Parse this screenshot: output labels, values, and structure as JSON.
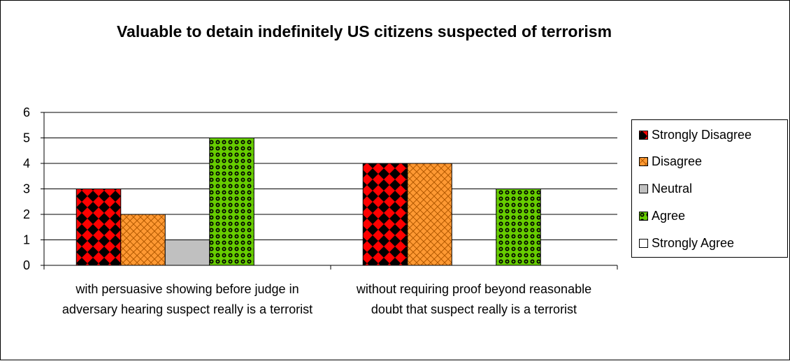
{
  "chart_data": {
    "type": "bar",
    "title": "Valuable to detain indefinitely US citizens suspected of terrorism",
    "xlabel": "",
    "ylabel": "",
    "ylim": [
      0,
      6
    ],
    "yticks": [
      "0",
      "1",
      "2",
      "3",
      "4",
      "5",
      "6"
    ],
    "grid": true,
    "legend_position": "right",
    "categories": [
      "with persuasive showing before judge in adversary hearing suspect really is a terrorist",
      "without requiring proof beyond reasonable doubt that suspect really is a terrorist"
    ],
    "series": [
      {
        "name": "Strongly Disagree",
        "values": [
          3,
          4
        ],
        "color": "#ff0000",
        "pattern": "diamond"
      },
      {
        "name": "Disagree",
        "values": [
          2,
          4
        ],
        "color": "#ff9933",
        "pattern": "crosshatch"
      },
      {
        "name": "Neutral",
        "values": [
          1,
          0
        ],
        "color": "#c0c0c0",
        "pattern": "solid"
      },
      {
        "name": "Agree",
        "values": [
          5,
          3
        ],
        "color": "#66cc00",
        "pattern": "dots"
      },
      {
        "name": "Strongly Agree",
        "values": [
          0,
          0
        ],
        "color": "#ffffff",
        "pattern": "solid"
      }
    ]
  }
}
